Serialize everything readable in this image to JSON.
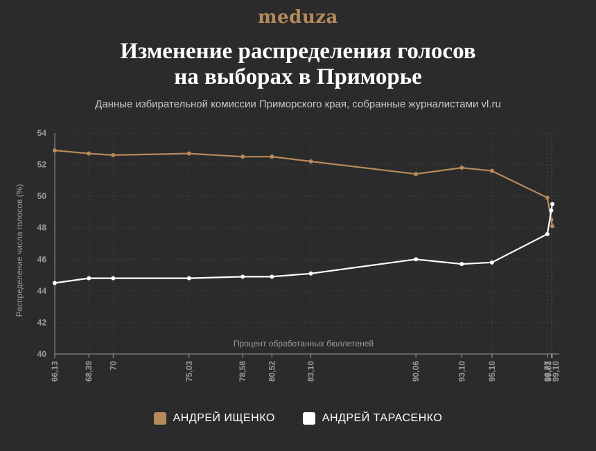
{
  "logo": "meduza",
  "title_line1": "Изменение распределения голосов",
  "title_line2": "на выборах в Приморье",
  "subtitle": "Данные избирательной комиссии Приморского края, собранные журналистами vl.ru",
  "colors": {
    "background": "#2b2b2b",
    "series1": "#b88a5a",
    "series2": "#ffffff",
    "axis": "#9a9a9a"
  },
  "chart_data": {
    "type": "line",
    "xlabel": "Процент обработанных бюллетеней",
    "ylabel": "Распределение числа голосов (%)",
    "ylim": [
      40,
      54
    ],
    "yticks": [
      40,
      42,
      44,
      46,
      48,
      50,
      52,
      54
    ],
    "xlim": [
      66.13,
      99.1
    ],
    "x": [
      66.13,
      68.39,
      70,
      75.03,
      78.58,
      80.52,
      83.1,
      90.06,
      93.1,
      95.1,
      98.77,
      99.03,
      99.1
    ],
    "x_tick_labels": [
      "66,13",
      "68,39",
      "70",
      "75,03",
      "78,58",
      "80,52",
      "83,10",
      "90,06",
      "93,10",
      "95,10",
      "98,77",
      "99,03",
      "99,10"
    ],
    "grid": true,
    "legend_position": "bottom",
    "series": [
      {
        "name": "АНДРЕЙ ИЩЕНКО",
        "color": "#b88a5a",
        "values": [
          52.9,
          52.7,
          52.6,
          52.7,
          52.5,
          52.5,
          52.2,
          51.4,
          51.8,
          51.6,
          49.9,
          48.5,
          48.1
        ]
      },
      {
        "name": "АНДРЕЙ ТАРАСЕНКО",
        "color": "#ffffff",
        "values": [
          44.5,
          44.8,
          44.8,
          44.8,
          44.9,
          44.9,
          45.1,
          46.0,
          45.7,
          45.8,
          47.6,
          49.1,
          49.5
        ]
      }
    ]
  }
}
